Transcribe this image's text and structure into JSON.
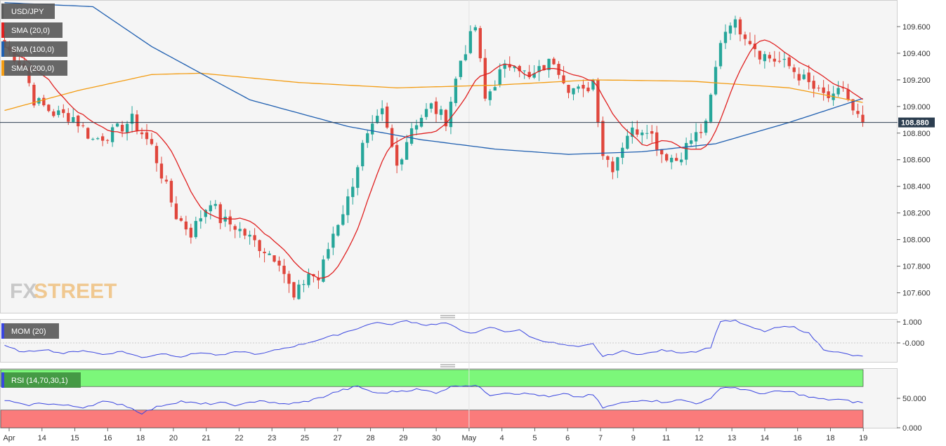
{
  "chart_data": {
    "type": "candlestick",
    "symbol": "USD/JPY",
    "watermark": "FXSTREET",
    "last_price": "108.880",
    "legend": [
      {
        "label": "USD/JPY",
        "color": "#5a5a5a"
      },
      {
        "label": "SMA (20,0)",
        "color": "#e02020"
      },
      {
        "label": "SMA (100,0)",
        "color": "#1f5fb0"
      },
      {
        "label": "SMA (200,0)",
        "color": "#f39c12"
      }
    ],
    "x_ticks": [
      "Apr",
      "14",
      "15",
      "16",
      "18",
      "20",
      "21",
      "22",
      "23",
      "25",
      "27",
      "28",
      "29",
      "30",
      "May",
      "4",
      "5",
      "6",
      "7",
      "9",
      "11",
      "12",
      "13",
      "14",
      "16",
      "18",
      "19"
    ],
    "price_axis": {
      "ylim": [
        107.45,
        109.8
      ],
      "ticks": [
        "109.600",
        "109.400",
        "109.200",
        "109.000",
        "108.800",
        "108.600",
        "108.400",
        "108.200",
        "108.000",
        "107.800",
        "107.600"
      ]
    },
    "colors": {
      "up": "#26a69a",
      "down": "#e0463c",
      "sma20": "#e02020",
      "sma100": "#1f5fb0",
      "sma200": "#f39c12",
      "price_line": "#2c3e50",
      "momentum": "#3a46e0",
      "rsi_line": "#3a46e0",
      "rsi_overbought": "#7cf77a",
      "rsi_oversold": "#fb7b7b"
    },
    "price_series_keypoints": [
      [
        0,
        109.45
      ],
      [
        4,
        109.3
      ],
      [
        6,
        109.05
      ],
      [
        10,
        108.95
      ],
      [
        14,
        108.92
      ],
      [
        18,
        108.75
      ],
      [
        22,
        108.8
      ],
      [
        26,
        108.9
      ],
      [
        30,
        108.7
      ],
      [
        35,
        108.18
      ],
      [
        38,
        108.05
      ],
      [
        42,
        108.3
      ],
      [
        44,
        108.15
      ],
      [
        47,
        108.1
      ],
      [
        52,
        107.95
      ],
      [
        56,
        107.85
      ],
      [
        59,
        107.55
      ],
      [
        62,
        107.75
      ],
      [
        64,
        107.7
      ],
      [
        67,
        108.05
      ],
      [
        70,
        108.3
      ],
      [
        73,
        108.7
      ],
      [
        77,
        108.95
      ],
      [
        80,
        108.55
      ],
      [
        83,
        108.85
      ],
      [
        87,
        109.0
      ],
      [
        90,
        108.9
      ],
      [
        93,
        109.35
      ],
      [
        96,
        109.6
      ],
      [
        98,
        109.05
      ],
      [
        101,
        109.25
      ],
      [
        104,
        109.35
      ],
      [
        107,
        109.2
      ],
      [
        110,
        109.3
      ],
      [
        112,
        109.35
      ],
      [
        115,
        109.15
      ],
      [
        118,
        109.1
      ],
      [
        120,
        109.2
      ],
      [
        122,
        108.65
      ],
      [
        124,
        108.55
      ],
      [
        127,
        108.8
      ],
      [
        131,
        108.85
      ],
      [
        134,
        108.65
      ],
      [
        137,
        108.6
      ],
      [
        140,
        108.75
      ],
      [
        143,
        108.85
      ],
      [
        146,
        109.5
      ],
      [
        148,
        109.65
      ],
      [
        151,
        109.55
      ],
      [
        154,
        109.4
      ],
      [
        157,
        109.35
      ],
      [
        160,
        109.3
      ],
      [
        163,
        109.2
      ],
      [
        166,
        109.1
      ],
      [
        169,
        109.05
      ],
      [
        171,
        109.15
      ],
      [
        173,
        108.95
      ],
      [
        175,
        108.88
      ]
    ],
    "momentum": {
      "label": "MOM (20)",
      "ticks": [
        "1.000",
        "-0.000"
      ],
      "ylim": [
        -0.9,
        1.1
      ],
      "keypoints": [
        [
          0,
          -0.15
        ],
        [
          4,
          -0.45
        ],
        [
          8,
          -0.3
        ],
        [
          12,
          -0.5
        ],
        [
          16,
          -0.35
        ],
        [
          20,
          -0.55
        ],
        [
          24,
          -0.4
        ],
        [
          28,
          -0.7
        ],
        [
          32,
          -0.5
        ],
        [
          36,
          -0.65
        ],
        [
          40,
          -0.45
        ],
        [
          44,
          -0.6
        ],
        [
          48,
          -0.4
        ],
        [
          52,
          -0.55
        ],
        [
          56,
          -0.3
        ],
        [
          60,
          -0.1
        ],
        [
          64,
          0.15
        ],
        [
          68,
          0.4
        ],
        [
          72,
          0.7
        ],
        [
          76,
          1.0
        ],
        [
          78,
          0.85
        ],
        [
          82,
          1.05
        ],
        [
          86,
          0.85
        ],
        [
          90,
          0.95
        ],
        [
          93,
          0.6
        ],
        [
          96,
          0.45
        ],
        [
          99,
          0.75
        ],
        [
          102,
          0.55
        ],
        [
          105,
          0.6
        ],
        [
          108,
          0.2
        ],
        [
          111,
          0.05
        ],
        [
          114,
          -0.1
        ],
        [
          117,
          -0.2
        ],
        [
          120,
          -0.05
        ],
        [
          122,
          -0.65
        ],
        [
          126,
          -0.4
        ],
        [
          130,
          -0.55
        ],
        [
          134,
          -0.35
        ],
        [
          138,
          -0.45
        ],
        [
          141,
          -0.4
        ],
        [
          144,
          -0.2
        ],
        [
          146,
          1.05
        ],
        [
          149,
          1.05
        ],
        [
          152,
          0.75
        ],
        [
          155,
          0.55
        ],
        [
          158,
          0.75
        ],
        [
          161,
          0.75
        ],
        [
          164,
          0.45
        ],
        [
          167,
          -0.3
        ],
        [
          170,
          -0.45
        ],
        [
          173,
          -0.6
        ],
        [
          175,
          -0.65
        ]
      ]
    },
    "rsi": {
      "label": "RSI (14,70,30,1)",
      "ticks": [
        "50.000",
        "0.000"
      ],
      "ylim": [
        0,
        100
      ],
      "overbought": 70,
      "oversold": 30,
      "keypoints": [
        [
          0,
          47
        ],
        [
          4,
          38
        ],
        [
          8,
          42
        ],
        [
          12,
          38
        ],
        [
          16,
          35
        ],
        [
          20,
          44
        ],
        [
          24,
          40
        ],
        [
          28,
          25
        ],
        [
          32,
          38
        ],
        [
          36,
          45
        ],
        [
          40,
          40
        ],
        [
          44,
          42
        ],
        [
          48,
          38
        ],
        [
          52,
          47
        ],
        [
          56,
          40
        ],
        [
          60,
          42
        ],
        [
          64,
          50
        ],
        [
          68,
          62
        ],
        [
          72,
          70
        ],
        [
          76,
          58
        ],
        [
          80,
          62
        ],
        [
          84,
          65
        ],
        [
          88,
          60
        ],
        [
          92,
          72
        ],
        [
          96,
          72
        ],
        [
          99,
          56
        ],
        [
          102,
          60
        ],
        [
          105,
          58
        ],
        [
          108,
          57
        ],
        [
          111,
          52
        ],
        [
          114,
          57
        ],
        [
          117,
          52
        ],
        [
          120,
          56
        ],
        [
          122,
          34
        ],
        [
          126,
          42
        ],
        [
          130,
          48
        ],
        [
          134,
          44
        ],
        [
          138,
          47
        ],
        [
          141,
          42
        ],
        [
          144,
          48
        ],
        [
          146,
          69
        ],
        [
          149,
          68
        ],
        [
          152,
          62
        ],
        [
          155,
          58
        ],
        [
          158,
          62
        ],
        [
          161,
          60
        ],
        [
          164,
          52
        ],
        [
          167,
          48
        ],
        [
          170,
          48
        ],
        [
          173,
          44
        ],
        [
          175,
          43
        ]
      ]
    }
  }
}
